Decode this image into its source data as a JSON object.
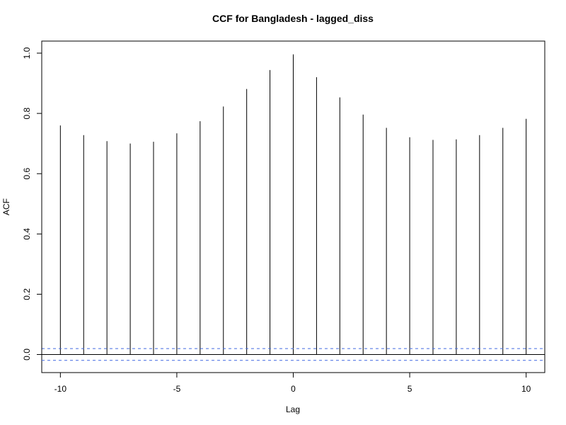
{
  "chart_data": {
    "type": "bar",
    "title": "CCF for Bangladesh - lagged_diss",
    "xlabel": "Lag",
    "ylabel": "ACF",
    "x": [
      -10,
      -9,
      -8,
      -7,
      -6,
      -5,
      -4,
      -3,
      -2,
      -1,
      0,
      1,
      2,
      3,
      4,
      5,
      6,
      7,
      8,
      9,
      10
    ],
    "values": [
      0.76,
      0.728,
      0.708,
      0.7,
      0.706,
      0.734,
      0.774,
      0.823,
      0.881,
      0.944,
      0.996,
      0.92,
      0.853,
      0.796,
      0.752,
      0.721,
      0.712,
      0.714,
      0.728,
      0.752,
      0.782
    ],
    "xlim": [
      -10.8,
      10.8
    ],
    "ylim": [
      -0.06,
      1.04
    ],
    "x_ticks": [
      -10,
      -5,
      0,
      5,
      10
    ],
    "x_tick_labels": [
      "-10",
      "-5",
      "0",
      "5",
      "10"
    ],
    "y_ticks": [
      0.0,
      0.2,
      0.4,
      0.6,
      0.8,
      1.0
    ],
    "y_tick_labels": [
      "0.0",
      "0.2",
      "0.4",
      "0.6",
      "0.8",
      "1.0"
    ],
    "confidence_bound": 0.0195,
    "grid": false,
    "colors": {
      "bars": "#000000",
      "zero_line": "#000000",
      "confidence_lines": "#4169e1",
      "frame": "#000000"
    }
  }
}
